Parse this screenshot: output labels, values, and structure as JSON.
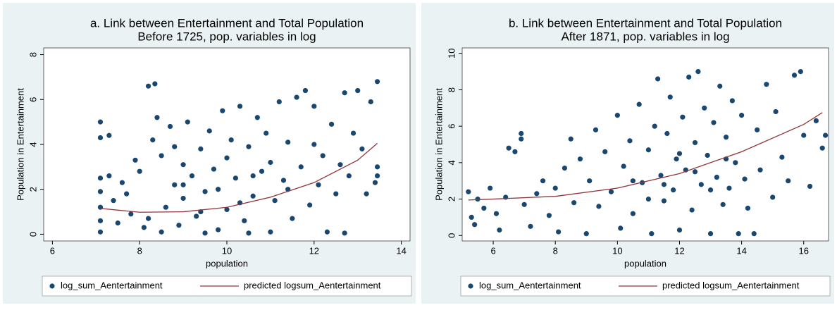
{
  "chart_data": [
    {
      "type": "scatter",
      "title": "a. Link between Entertainment and Total Population",
      "subtitle": "Before 1725, pop. variables in log",
      "xlabel": "population",
      "ylabel": "Population in Entertainment",
      "xlim": [
        5.8,
        14.2
      ],
      "ylim": [
        -0.3,
        8.3
      ],
      "xticks": [
        6,
        8,
        10,
        12,
        14
      ],
      "yticks": [
        0,
        2,
        4,
        6,
        8
      ],
      "grid": false,
      "series": [
        {
          "name": "log_sum_Aentertainment",
          "type": "scatter",
          "color": "#1a476f",
          "x": [
            7.1,
            7.1,
            7.1,
            7.1,
            7.1,
            7.1,
            7.1,
            7.3,
            7.3,
            7.4,
            7.5,
            7.6,
            7.7,
            7.8,
            7.9,
            8,
            8.1,
            8.2,
            8.35,
            8.3,
            8.4,
            8.5,
            8.6,
            8.7,
            8.8,
            8.9,
            9,
            9,
            9.1,
            9.2,
            9.3,
            9.4,
            9.5,
            9.6,
            9.7,
            9.8,
            9.9,
            10,
            10,
            10.1,
            10.2,
            10.3,
            10.4,
            10.5,
            10.6,
            10.7,
            10.8,
            10.9,
            11,
            11,
            11.1,
            11.2,
            11.3,
            11.4,
            11.5,
            11.6,
            11.7,
            11.8,
            11.9,
            12,
            12,
            12.1,
            12.2,
            12.3,
            12.4,
            12.5,
            12.6,
            12.7,
            12.8,
            12.9,
            13,
            13.1,
            13.2,
            13.3,
            13.45,
            13.45,
            13.45,
            13.4,
            9.5,
            10.5,
            8.5,
            12.7,
            9,
            9.8,
            10.3,
            8.8,
            10.6,
            9.4,
            11.4,
            8.2
          ],
          "values": [
            5,
            4.3,
            2.5,
            1.9,
            1.2,
            0.6,
            0.1,
            4.4,
            2.6,
            1.5,
            0.5,
            2.3,
            1.8,
            0.9,
            3.3,
            2.8,
            0.3,
            6.6,
            6.7,
            4.2,
            5.2,
            3.5,
            1.2,
            4.8,
            2.2,
            0.4,
            3.1,
            1.6,
            5,
            2.6,
            0.8,
            3.8,
            1.9,
            4.6,
            2.9,
            0.2,
            5.5,
            3.4,
            1.1,
            4.2,
            2.5,
            5.7,
            0.6,
            3.9,
            1.7,
            5.2,
            2.8,
            4.5,
            0.1,
            3.2,
            1.5,
            5.9,
            2.4,
            4.1,
            0.7,
            6.1,
            3,
            6.4,
            1.3,
            4,
            5.7,
            2.2,
            3.5,
            0.1,
            4.9,
            1.8,
            3.1,
            6.3,
            2.6,
            4.5,
            6.4,
            3.8,
            1.8,
            5.9,
            6.8,
            3,
            2.6,
            2.3,
            0.05,
            0.05,
            0.1,
            0.05,
            2.2,
            2,
            1.4,
            3.9,
            2.6,
            1,
            2,
            0.7
          ]
        },
        {
          "name": "predicted logsum_Aentertainment",
          "type": "line",
          "color": "#90353b",
          "x": [
            7.1,
            8,
            9,
            10,
            11,
            12,
            13,
            13.45
          ],
          "values": [
            1.15,
            0.98,
            1.0,
            1.2,
            1.65,
            2.3,
            3.3,
            4.05
          ]
        }
      ]
    },
    {
      "type": "scatter",
      "title": "b. Link between Entertainment and Total Population",
      "subtitle": "After 1871, pop. variables in log",
      "xlabel": "population",
      "ylabel": "Population in Entertainment",
      "xlim": [
        5,
        16.8
      ],
      "ylim": [
        -0.3,
        10.3
      ],
      "xticks": [
        6,
        8,
        10,
        12,
        14,
        16
      ],
      "yticks": [
        0,
        2,
        4,
        6,
        8,
        10
      ],
      "grid": false,
      "series": [
        {
          "name": "log_sum_Aentertainment",
          "type": "scatter",
          "color": "#1a476f",
          "x": [
            5.2,
            5.3,
            5.4,
            5.5,
            5.7,
            5.9,
            6.1,
            6.2,
            6.4,
            6.5,
            6.7,
            6.9,
            6.9,
            7.0,
            7.2,
            7.4,
            7.6,
            7.8,
            8.0,
            8.1,
            8.3,
            8.5,
            8.6,
            8.8,
            9.0,
            9.1,
            9.3,
            9.4,
            9.6,
            9.8,
            10.0,
            10.1,
            10.2,
            10.4,
            10.5,
            10.7,
            10.8,
            11.0,
            11.1,
            11.2,
            11.3,
            11.4,
            11.5,
            11.6,
            11.7,
            11.8,
            11.9,
            12.0,
            12.1,
            12.2,
            12.3,
            12.4,
            12.5,
            12.6,
            12.7,
            12.8,
            12.9,
            13.0,
            13.1,
            13.2,
            13.3,
            13.4,
            13.5,
            13.6,
            13.7,
            13.8,
            13.9,
            14.0,
            14.1,
            14.2,
            14.4,
            14.5,
            14.6,
            14.8,
            15.0,
            15.1,
            15.3,
            15.5,
            15.7,
            15.9,
            16.0,
            16.2,
            16.4,
            16.6,
            16.7,
            10.5,
            11.5,
            12.5,
            13.5,
            12,
            11,
            13
          ],
          "values": [
            2.4,
            1.0,
            0.6,
            2.0,
            1.5,
            2.6,
            1.2,
            0.3,
            2.1,
            4.8,
            4.6,
            5.6,
            5.3,
            1.7,
            0.5,
            2.3,
            3.0,
            1.1,
            2.6,
            0.2,
            3.7,
            5.3,
            1.8,
            4.2,
            0.1,
            3.0,
            5.8,
            1.6,
            4.6,
            2.4,
            6.6,
            0.4,
            3.8,
            5.2,
            1.2,
            7.2,
            2.9,
            4.7,
            0.1,
            6.0,
            8.6,
            3.3,
            1.9,
            5.6,
            7.6,
            2.5,
            4.2,
            0.3,
            6.5,
            3.6,
            8.7,
            1.4,
            5.1,
            9.0,
            2.8,
            7.0,
            4.4,
            0.1,
            6.2,
            3.2,
            8.2,
            1.7,
            5.4,
            2.6,
            7.4,
            4.0,
            0.1,
            6.6,
            3.1,
            1.5,
            0.1,
            5.8,
            3.6,
            8.3,
            2.1,
            6.8,
            4.3,
            3.0,
            8.8,
            9.0,
            5.5,
            2.7,
            6.3,
            4.8,
            5.5,
            3.0,
            2.8,
            3.5,
            4.2,
            4.5,
            2,
            2.5
          ]
        },
        {
          "name": "predicted logsum_Aentertainment",
          "type": "line",
          "color": "#90353b",
          "x": [
            5.2,
            6,
            8,
            10,
            12,
            14,
            16,
            16.6
          ],
          "values": [
            1.95,
            2.0,
            2.15,
            2.6,
            3.4,
            4.6,
            6.1,
            6.75
          ]
        }
      ]
    }
  ]
}
